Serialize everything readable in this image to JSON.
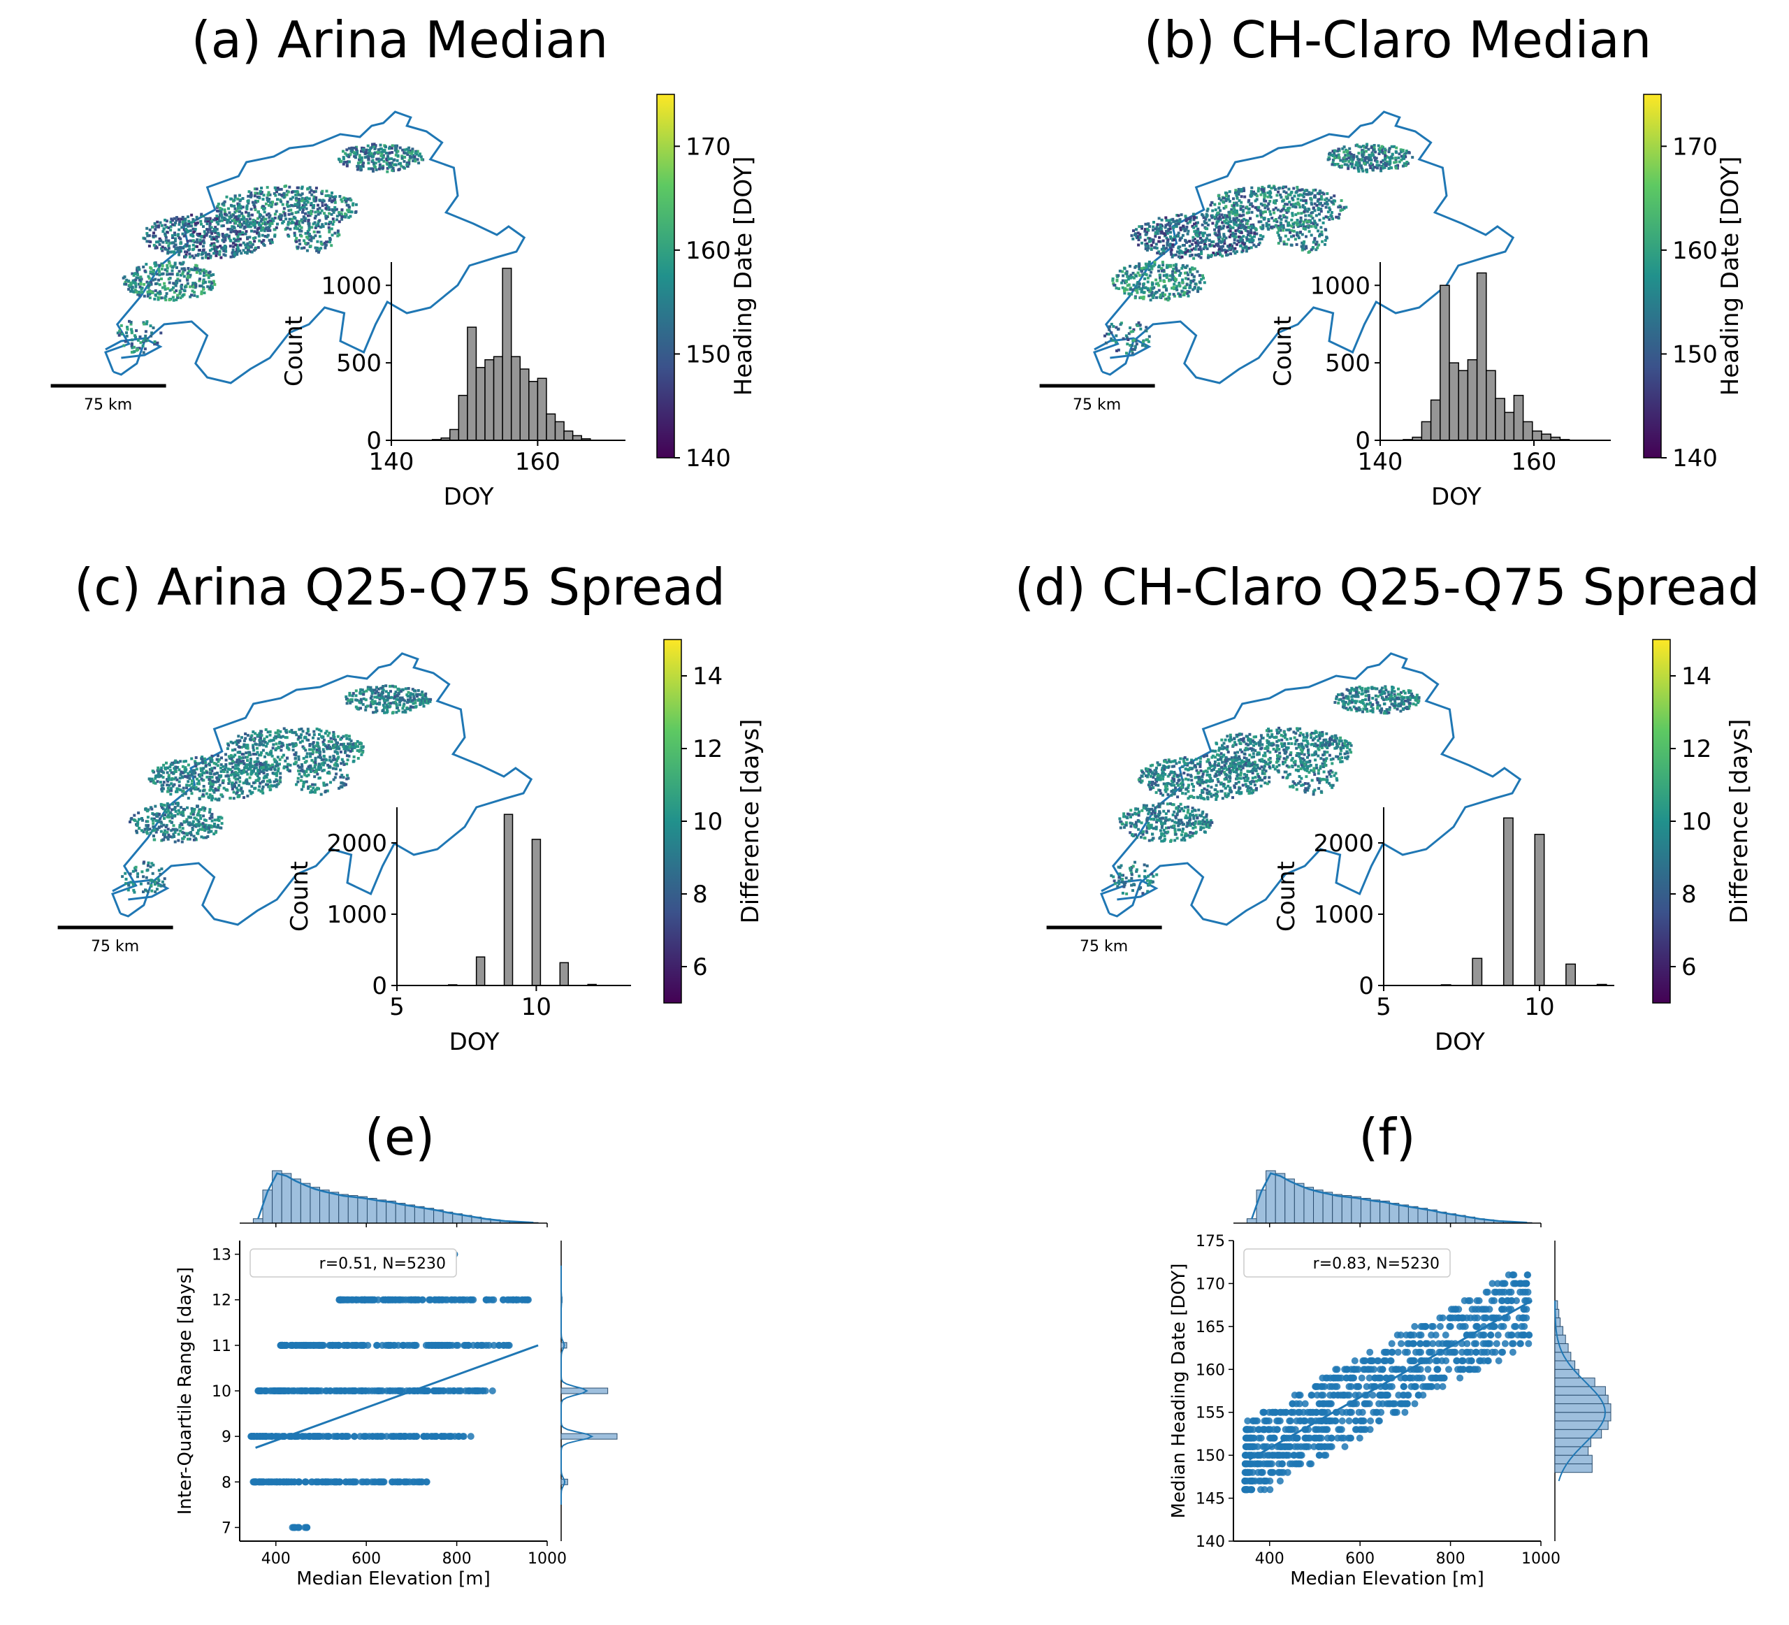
{
  "chart_data": [
    {
      "id": "a",
      "type": "map+histogram",
      "title": "(a) Arina Median",
      "scalebar_label": "75 km",
      "colorbar": {
        "label": "Heading Date [DOY]",
        "range": [
          140,
          175
        ],
        "ticks": [
          140,
          150,
          160,
          170
        ],
        "colormap": "viridis"
      },
      "inset": {
        "type": "bar",
        "xlabel": "DOY",
        "ylabel": "Count",
        "xlim": [
          140,
          172
        ],
        "ylim": [
          0,
          1150
        ],
        "xticks": [
          140,
          160
        ],
        "yticks": [
          0,
          500,
          1000
        ],
        "bin_width": 1.2,
        "bin_starts": [
          145.6,
          146.8,
          148.0,
          149.2,
          150.4,
          151.6,
          152.8,
          154.0,
          155.2,
          156.4,
          157.6,
          158.8,
          160.0,
          161.2,
          162.4,
          163.6,
          164.8,
          166.0
        ],
        "values": [
          5,
          15,
          70,
          290,
          730,
          470,
          520,
          540,
          1110,
          540,
          460,
          380,
          400,
          170,
          120,
          60,
          30,
          10
        ]
      }
    },
    {
      "id": "b",
      "type": "map+histogram",
      "title": "(b) CH-Claro Median",
      "scalebar_label": "75 km",
      "colorbar": {
        "label": "Heading Date [DOY]",
        "range": [
          140,
          175
        ],
        "ticks": [
          140,
          150,
          160,
          170
        ],
        "colormap": "viridis"
      },
      "inset": {
        "type": "bar",
        "xlabel": "DOY",
        "ylabel": "Count",
        "xlim": [
          140,
          170
        ],
        "ylim": [
          0,
          1150
        ],
        "xticks": [
          140,
          160
        ],
        "yticks": [
          0,
          500,
          1000
        ],
        "bin_width": 1.2,
        "bin_starts": [
          143.0,
          144.2,
          145.4,
          146.6,
          147.8,
          149.0,
          150.2,
          151.4,
          152.6,
          153.8,
          155.0,
          156.2,
          157.4,
          158.6,
          159.8,
          161.0,
          162.2,
          163.4
        ],
        "values": [
          5,
          20,
          120,
          260,
          1000,
          500,
          450,
          520,
          1080,
          450,
          270,
          180,
          290,
          120,
          60,
          40,
          20,
          5
        ]
      }
    },
    {
      "id": "c",
      "type": "map+histogram",
      "title": "(c) Arina Q25-Q75 Spread",
      "scalebar_label": "75 km",
      "colorbar": {
        "label": "Difference [days]",
        "range": [
          5,
          15
        ],
        "ticks": [
          6,
          8,
          10,
          12,
          14
        ],
        "colormap": "viridis"
      },
      "inset": {
        "type": "bar",
        "xlabel": "DOY",
        "ylabel": "Count",
        "xlim": [
          5,
          13.4
        ],
        "ylim": [
          0,
          2500
        ],
        "xticks": [
          5,
          10
        ],
        "yticks": [
          0,
          1000,
          2000
        ],
        "bin_width": 0.3,
        "bin_starts": [
          6.85,
          7.85,
          8.85,
          9.85,
          10.85,
          11.85
        ],
        "values": [
          10,
          400,
          2400,
          2050,
          320,
          15
        ]
      }
    },
    {
      "id": "d",
      "type": "map+histogram",
      "title": "(d) CH-Claro Q25-Q75 Spread",
      "scalebar_label": "75 km",
      "colorbar": {
        "label": "Difference [days]",
        "range": [
          5,
          15
        ],
        "ticks": [
          6,
          8,
          10,
          12,
          14
        ],
        "colormap": "viridis"
      },
      "inset": {
        "type": "bar",
        "xlabel": "DOY",
        "ylabel": "Count",
        "xlim": [
          5,
          12.4
        ],
        "ylim": [
          0,
          2500
        ],
        "xticks": [
          5,
          10
        ],
        "yticks": [
          0,
          1000,
          2000
        ],
        "bin_width": 0.3,
        "bin_starts": [
          6.85,
          7.85,
          8.85,
          9.85,
          10.85,
          11.85
        ],
        "values": [
          10,
          380,
          2350,
          2120,
          300,
          15
        ]
      }
    },
    {
      "id": "e",
      "type": "scatter",
      "title": "(e)",
      "xlabel": "Median Elevation [m]",
      "ylabel": "Inter-Quartile Range [days]",
      "xlim": [
        320,
        1000
      ],
      "ylim": [
        6.7,
        13.3
      ],
      "xticks": [
        400,
        600,
        800,
        1000
      ],
      "yticks": [
        7,
        8,
        9,
        10,
        11,
        12,
        13
      ],
      "legend": "r=0.51, N=5230",
      "regression": {
        "x": [
          355,
          980
        ],
        "y": [
          8.75,
          11.0
        ]
      },
      "point_rows": [
        {
          "y": 13,
          "x_range": [
            795,
            800
          ]
        },
        {
          "y": 12,
          "x_range": [
            540,
            960
          ]
        },
        {
          "y": 11,
          "x_range": [
            410,
            930
          ]
        },
        {
          "y": 10,
          "x_range": [
            360,
            880
          ]
        },
        {
          "y": 9,
          "x_range": [
            345,
            850
          ]
        },
        {
          "y": 8,
          "x_range": [
            350,
            735
          ]
        },
        {
          "y": 7,
          "x_range": [
            430,
            470
          ]
        }
      ],
      "top_hist": {
        "x_range": [
          350,
          980
        ],
        "values": [
          8,
          60,
          95,
          90,
          80,
          72,
          65,
          60,
          56,
          52,
          50,
          48,
          45,
          42,
          40,
          36,
          33,
          30,
          27,
          24,
          20,
          17,
          14,
          11,
          8,
          6,
          4,
          3,
          2,
          1
        ]
      },
      "right_hist": {
        "categories": [
          8,
          9,
          10,
          11,
          12
        ],
        "values": [
          7,
          60,
          50,
          6,
          1
        ]
      }
    },
    {
      "id": "f",
      "type": "scatter",
      "title": "(f)",
      "xlabel": "Median Elevation [m]",
      "ylabel": "Median Heading Date [DOY]",
      "xlim": [
        320,
        1000
      ],
      "ylim": [
        140,
        175
      ],
      "xticks": [
        400,
        600,
        800,
        1000
      ],
      "yticks": [
        140,
        145,
        150,
        155,
        160,
        165,
        170,
        175
      ],
      "legend": "r=0.83, N=5230",
      "regression": {
        "x": [
          355,
          980
        ],
        "y": [
          149.5,
          168.0
        ]
      },
      "band": {
        "slope": 0.0296,
        "intercept_at_355": 149.5,
        "spread": 4.5,
        "x_range": [
          345,
          975
        ],
        "y_range": [
          146,
          171
        ]
      },
      "top_hist": {
        "x_range": [
          350,
          980
        ],
        "values": [
          8,
          60,
          95,
          90,
          80,
          72,
          65,
          60,
          56,
          52,
          50,
          48,
          45,
          42,
          40,
          36,
          33,
          30,
          27,
          24,
          20,
          17,
          14,
          11,
          8,
          6,
          4,
          3,
          2,
          1
        ]
      },
      "right_hist": {
        "bin_starts": [
          148,
          149,
          150,
          151,
          152,
          153,
          154,
          155,
          156,
          157,
          158,
          159,
          160,
          161,
          162,
          163,
          164,
          165,
          166,
          167
        ],
        "values": [
          28,
          28,
          25,
          27,
          35,
          40,
          42,
          42,
          40,
          38,
          30,
          18,
          15,
          12,
          10,
          8,
          6,
          4,
          3,
          2
        ]
      }
    }
  ]
}
